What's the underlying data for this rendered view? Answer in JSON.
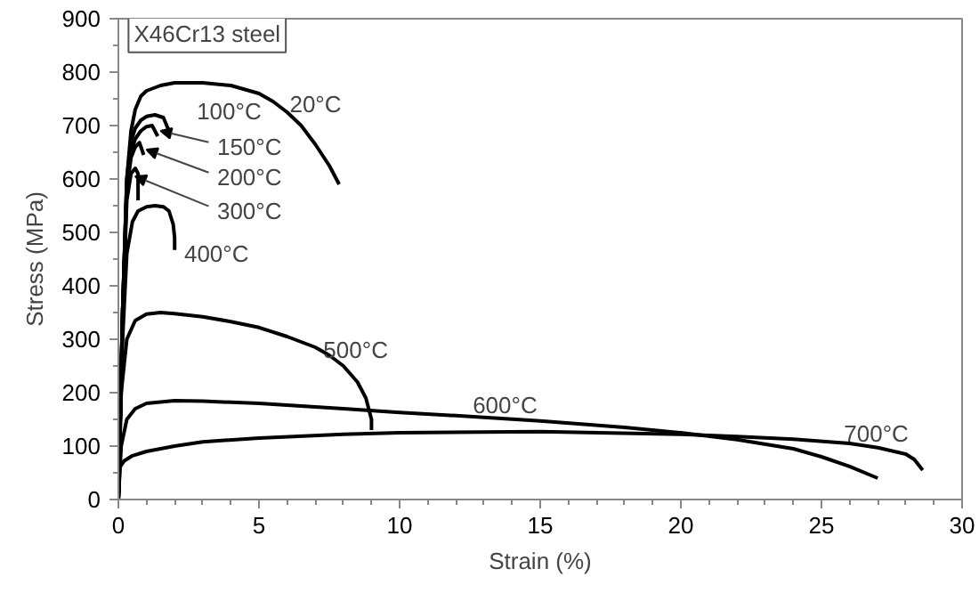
{
  "chart_data": {
    "type": "line",
    "xlabel": "Strain (%)",
    "ylabel": "Stress (MPa)",
    "xlim": [
      0,
      30
    ],
    "ylim": [
      0,
      900
    ],
    "xticks": [
      0,
      5,
      10,
      15,
      20,
      25,
      30
    ],
    "yticks": [
      0,
      100,
      200,
      300,
      400,
      500,
      600,
      700,
      800,
      900
    ],
    "grid": false,
    "marker": "none",
    "line_style": "solid",
    "series": [
      {
        "color": "#000000",
        "x": [
          0,
          0.15,
          0.3,
          0.45,
          0.6,
          0.8,
          1,
          1.5,
          2,
          3,
          4,
          5,
          5.5,
          6,
          6.5,
          7,
          7.5,
          7.85
        ],
        "values": [
          0,
          350,
          600,
          690,
          730,
          755,
          765,
          775,
          780,
          780,
          775,
          760,
          745,
          725,
          700,
          665,
          625,
          590
        ]
      },
      {
        "color": "#000000",
        "x": [
          0,
          0.15,
          0.3,
          0.45,
          0.6,
          0.8,
          1,
          1.3,
          1.6,
          1.8
        ],
        "values": [
          0,
          350,
          600,
          670,
          695,
          710,
          717,
          720,
          715,
          690
        ]
      },
      {
        "color": "#000000",
        "x": [
          0,
          0.15,
          0.3,
          0.45,
          0.6,
          0.8,
          1,
          1.2,
          1.4
        ],
        "values": [
          0,
          350,
          590,
          650,
          675,
          690,
          698,
          700,
          680
        ]
      },
      {
        "color": "#000000",
        "x": [
          0,
          0.15,
          0.3,
          0.45,
          0.6,
          0.75,
          0.9
        ],
        "values": [
          0,
          350,
          580,
          640,
          660,
          668,
          645
        ]
      },
      {
        "color": "#000000",
        "x": [
          0,
          0.15,
          0.3,
          0.45,
          0.6,
          0.7,
          0.7
        ],
        "values": [
          0,
          340,
          560,
          610,
          620,
          610,
          560
        ]
      },
      {
        "color": "#000000",
        "x": [
          0,
          0.15,
          0.3,
          0.5,
          0.7,
          1,
          1.3,
          1.6,
          1.8,
          1.95,
          2,
          2
        ],
        "values": [
          0,
          300,
          460,
          520,
          540,
          548,
          550,
          548,
          540,
          515,
          490,
          467
        ]
      },
      {
        "color": "#000000",
        "x": [
          0,
          0.1,
          0.3,
          0.6,
          1,
          1.5,
          2,
          3,
          4,
          5,
          6,
          7,
          7.5,
          8,
          8.5,
          8.8,
          9,
          9
        ],
        "values": [
          0,
          200,
          300,
          335,
          347,
          350,
          348,
          342,
          333,
          322,
          305,
          285,
          270,
          250,
          220,
          190,
          150,
          130
        ]
      },
      {
        "color": "#000000",
        "x": [
          0,
          0.1,
          0.3,
          0.6,
          1,
          2,
          3,
          5,
          8,
          10,
          12,
          15,
          18,
          20,
          22,
          24,
          25,
          26,
          27
        ],
        "values": [
          0,
          100,
          150,
          170,
          180,
          185,
          184,
          180,
          170,
          163,
          157,
          147,
          135,
          125,
          112,
          95,
          80,
          62,
          40
        ]
      },
      {
        "color": "#000000",
        "x": [
          0,
          0.05,
          0.2,
          0.5,
          1,
          2,
          3,
          5,
          8,
          10,
          15,
          20,
          22,
          24,
          26,
          27,
          28,
          28.3,
          28.6
        ],
        "values": [
          0,
          60,
          72,
          82,
          90,
          100,
          108,
          115,
          122,
          125,
          127,
          122,
          118,
          113,
          105,
          97,
          85,
          75,
          55
        ]
      }
    ],
    "annotations": [
      "X46Cr13 steel",
      "20°C",
      "100°C",
      {
        "text": "150°C",
        "x": 1.5,
        "y": 690
      },
      {
        "text": "200°C",
        "x": 1.0,
        "y": 655
      },
      {
        "text": "300°C",
        "x": 0.6,
        "y": 605
      },
      "400°C",
      "500°C",
      "600°C",
      "700°C"
    ]
  }
}
